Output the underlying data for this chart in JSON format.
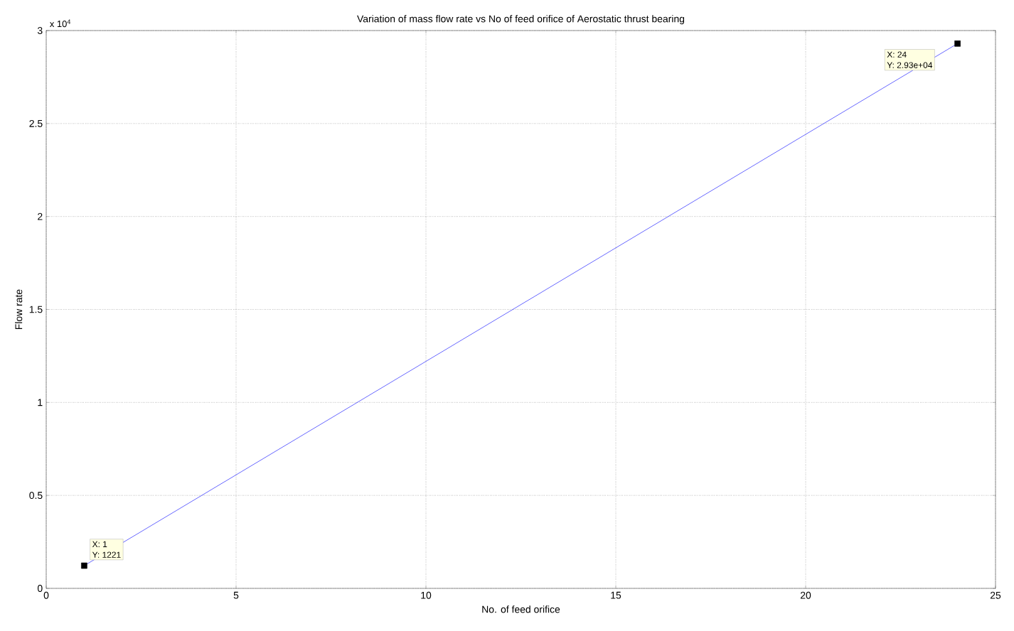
{
  "chart_data": {
    "type": "line",
    "title": "Variation of mass flow rate vs No of feed orifice of Aerostatic thrust bearing",
    "xlabel": "No. of feed orifice",
    "ylabel": "Flow rate",
    "x": [
      1,
      24
    ],
    "values": [
      0.1221,
      2.93
    ],
    "color": "#0000ff",
    "marker": "square",
    "line_style": "solid",
    "grid": true,
    "xlim": [
      0,
      25
    ],
    "xticks": [
      0,
      5,
      10,
      15,
      20,
      25
    ],
    "ylim": [
      0,
      3
    ],
    "yticks": [
      0,
      0.5,
      1,
      1.5,
      2,
      2.5,
      3
    ],
    "annotations": [
      "x 10$^{4}$",
      "X: 1",
      "Y: 1221",
      "X: 24",
      "Y: 2.93e+04"
    ]
  }
}
